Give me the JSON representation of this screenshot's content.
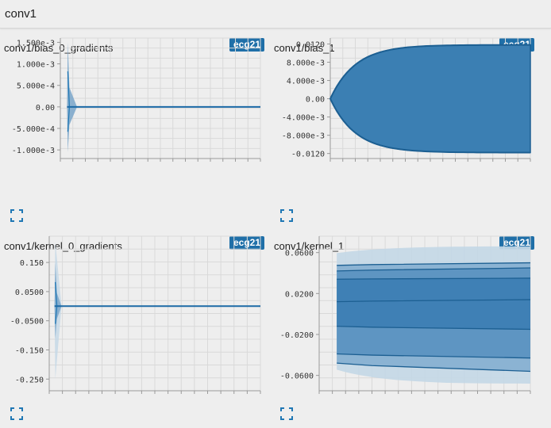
{
  "section": {
    "title": "conv1"
  },
  "colors": {
    "accent": "#1f77b4",
    "badge_bg": "#1f6fa8",
    "band_fill": "#3b7fb3",
    "band_light": "#c3d7e6",
    "band_mid": "#7fa9cb",
    "grid": "#d9d9d9",
    "background": "#eeeeee"
  },
  "cards": [
    {
      "title": "conv1/bias_0_gradients",
      "badge": "ecg21",
      "expand_icon": "expand-icon",
      "chart_data": {
        "type": "area",
        "chart_kind": "distribution",
        "yticks": [
          "1.500e-3",
          "1.000e-3",
          "5.000e-4",
          "0.00",
          "-5.000e-4",
          "-1.000e-3"
        ],
        "ylim": [
          -0.0012,
          0.0016
        ],
        "xlim": [
          0,
          60
        ],
        "grid": true,
        "note_shape": "spike",
        "spike": {
          "x_start": 2,
          "x_settle": 5,
          "peak_max": 0.0015,
          "peak_min": -0.00105,
          "steady": 0
        }
      }
    },
    {
      "title": "conv1/bias_1",
      "badge": "ecg21",
      "expand_icon": "expand-icon",
      "chart_data": {
        "type": "area",
        "chart_kind": "distribution",
        "yticks": [
          "0.0120",
          "8.000e-3",
          "4.000e-3",
          "0.00",
          "-4.000e-3",
          "-8.000e-3",
          "-0.0120"
        ],
        "ylim": [
          -0.0131,
          0.0133
        ],
        "xlim": [
          0,
          60
        ],
        "grid": true,
        "note_shape": "growing-band",
        "band": {
          "upper_final": 0.0118,
          "lower_final": -0.0118,
          "x_start": 0
        }
      }
    },
    {
      "title": "conv1/kernel_0_gradients",
      "badge": "ecg21",
      "expand_icon": "expand-icon",
      "chart_data": {
        "type": "area",
        "chart_kind": "distribution",
        "yticks": [
          "0.150",
          "0.0500",
          "-0.0500",
          "-0.150",
          "-0.250"
        ],
        "ylim": [
          -0.29,
          0.24
        ],
        "xlim": [
          0,
          60
        ],
        "grid": true,
        "note_shape": "spike",
        "spike": {
          "x_start": 1.5,
          "x_settle": 3.5,
          "peak_max": 0.15,
          "peak_min": -0.11,
          "steady": 0,
          "outer_max": 0.22,
          "outer_min": -0.25
        }
      }
    },
    {
      "title": "conv1/kernel_1",
      "badge": "ecg21",
      "expand_icon": "expand-icon",
      "chart_data": {
        "type": "area",
        "chart_kind": "distribution",
        "yticks": [
          "0.0600",
          "0.0200",
          "-0.0200",
          "-0.0600"
        ],
        "ylim": [
          -0.075,
          0.076
        ],
        "xlim": [
          0,
          60
        ],
        "grid": true,
        "note_shape": "quantile-bands",
        "quantiles": {
          "start": [
            0.0475,
            0.042,
            0.034,
            0.012,
            -0.012,
            -0.039,
            -0.048
          ],
          "end": [
            0.05,
            0.045,
            0.035,
            0.014,
            -0.015,
            -0.043,
            -0.056
          ],
          "outer_max": 0.066,
          "outer_min": -0.068
        }
      }
    }
  ]
}
